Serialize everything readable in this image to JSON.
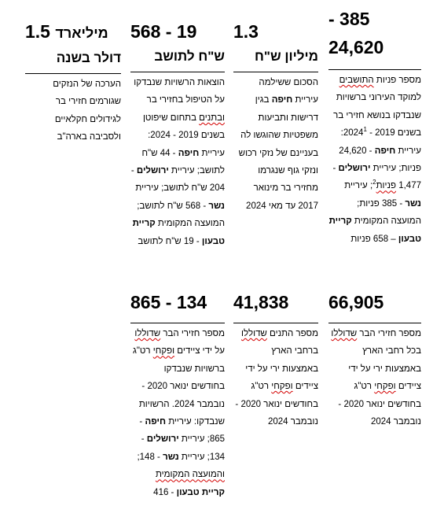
{
  "cards": [
    {
      "id": "applications",
      "value_line1": "- 385",
      "value_line2": "24,620",
      "desc": [
        {
          "t": "מספר פניות "
        },
        {
          "t": "התושבים",
          "sp": true
        },
        {
          "t": " למוקד העירוני ברשויות שנבדקו בנושא חזירי בר בשנים 2019 - 2024"
        },
        {
          "t": "1",
          "sup": true
        },
        {
          "t": ": עיריית "
        },
        {
          "t": "חיפה",
          "b": true
        },
        {
          "t": " - 24,620 פניות; עיריית "
        },
        {
          "t": "ירושלים",
          "b": true
        },
        {
          "t": " - 1,477 "
        },
        {
          "t": "פניות",
          "sp": true
        },
        {
          "t": "2",
          "sup": true
        },
        {
          "t": "; עיריית "
        },
        {
          "t": "נשר",
          "b": true
        },
        {
          "t": " - 385 פניות; המועצה המקומית "
        },
        {
          "t": "קריית טבעון",
          "b": true
        },
        {
          "t": " – 658 פניות"
        }
      ]
    },
    {
      "id": "settlement",
      "value": "1.3",
      "unit": "מיליון ש\"ח",
      "desc": [
        {
          "t": "הסכום ששילמה עיריית "
        },
        {
          "t": "חיפה",
          "b": true
        },
        {
          "t": " בגין דרישות ותביעות משפטיות שהוגשו לה בעניינם של נזקי רכוש ונזקי גוף שנגרמו מחזירי בר מינואר 2017 עד מאי 2024"
        }
      ]
    },
    {
      "id": "cost-per-resident",
      "value": "568 - 19",
      "unit": "ש\"ח לתושב",
      "desc": [
        {
          "t": "הוצאות הרשויות שנבדקו על הטיפול בחזירי בר "
        },
        {
          "t": "ובתנים",
          "sp": true
        },
        {
          "t": " בתחום שיפוטן בשנים 2019 - 2024: עיריית "
        },
        {
          "t": "חיפה",
          "b": true
        },
        {
          "t": " - 44 ש\"ח לתושב; עיריית "
        },
        {
          "t": "ירושלים",
          "b": true
        },
        {
          "t": " - 204 ש\"ח לתושב; עיריית "
        },
        {
          "t": "נשר",
          "b": true
        },
        {
          "t": " - 568 ש\"ח לתושב; המועצה המקומית "
        },
        {
          "t": "קריית טבעון",
          "b": true
        },
        {
          "t": " - 19 ש\"ח לתושב"
        }
      ]
    },
    {
      "id": "damage-estimate",
      "value_fig": "1.5",
      "value_word": "מיליארד",
      "unit": "דולר בשנה",
      "desc": [
        {
          "t": "הערכה של הנזקים שגורמים חזירי בר לגידולים חקלאיים ולסביבה בארה\"ב"
        }
      ]
    },
    {
      "id": "boars-culled",
      "value": "66,905",
      "desc": [
        {
          "t": "מספר חזירי הבר "
        },
        {
          "t": "שדוללו",
          "sp": true
        },
        {
          "t": " בכל רחבי הארץ באמצעות ירי על ידי ציידים "
        },
        {
          "t": "ופקחי",
          "sp": true
        },
        {
          "t": " רט\"ג בחודשים ינואר 2020 - נובמבר 2024"
        }
      ]
    },
    {
      "id": "jackals-culled",
      "value": "41,838",
      "desc": [
        {
          "t": "מספר התנים "
        },
        {
          "t": "שדוללו",
          "sp": true
        },
        {
          "t": " ברחבי הארץ באמצעות ירי על ידי ציידים "
        },
        {
          "t": "ופקחי",
          "sp": true
        },
        {
          "t": " רט\"ג בחודשים ינואר 2020 - נובמבר 2024"
        }
      ]
    },
    {
      "id": "boars-culled-local",
      "value": "865 - 134",
      "desc": [
        {
          "t": "מספר חזירי הבר "
        },
        {
          "t": "שדוללו",
          "sp": true
        },
        {
          "t": " על ידי ציידים "
        },
        {
          "t": "ופקחי",
          "sp": true
        },
        {
          "t": " רט\"ג ברשויות שנבדקו בחודשים ינואר 2020 - נובמבר 2024. הרשויות שנבדקו: עיריית "
        },
        {
          "t": "חיפה",
          "b": true
        },
        {
          "t": " - 865; עיריית "
        },
        {
          "t": "ירושלים",
          "b": true
        },
        {
          "t": " - 134; עיריית "
        },
        {
          "t": "נשר",
          "b": true
        },
        {
          "t": " - 148; "
        },
        {
          "t": "והמועצה המקומית",
          "sp": true
        },
        {
          "t": " "
        },
        {
          "t": "קריית טבעון",
          "b": true
        },
        {
          "t": " - 416"
        }
      ]
    }
  ]
}
